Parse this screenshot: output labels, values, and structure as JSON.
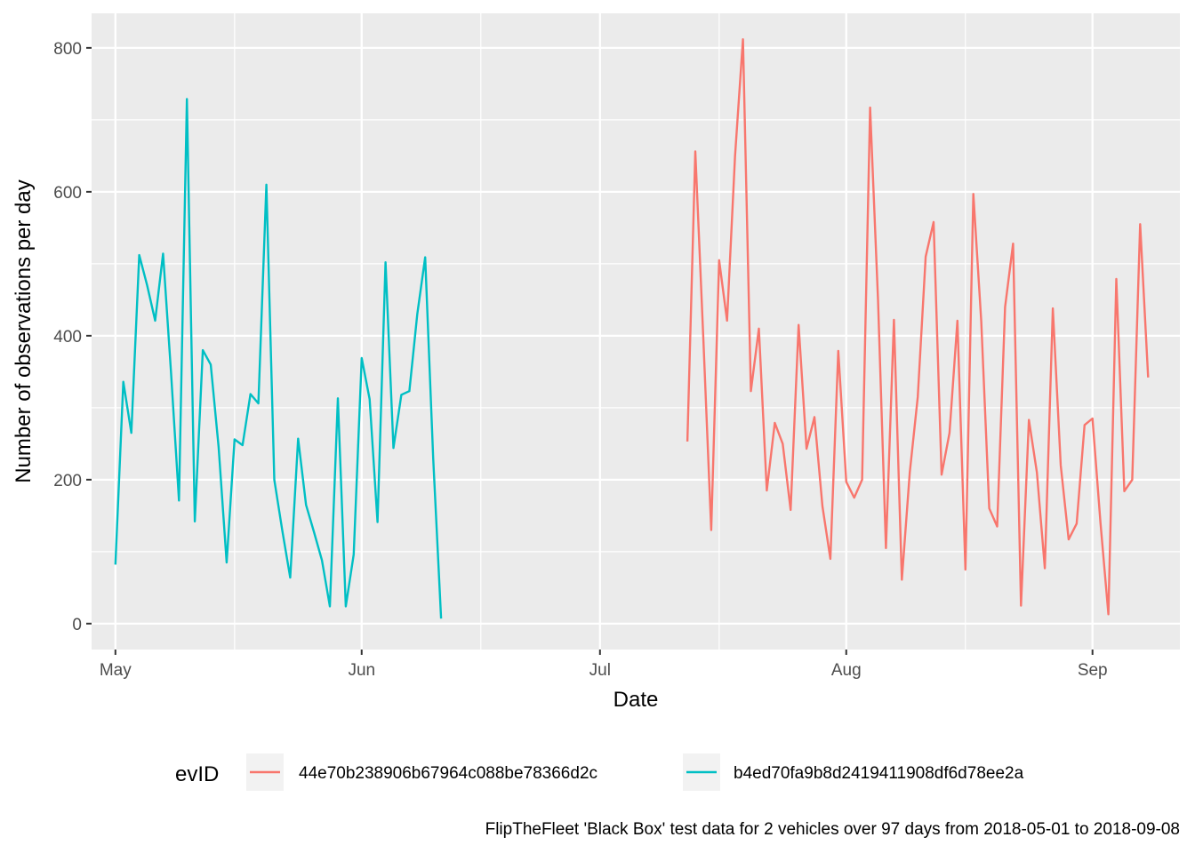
{
  "chart_data": {
    "type": "line",
    "title": "",
    "xlabel": "Date",
    "ylabel": "Number of observations per day",
    "caption": "FlipTheFleet 'Black Box' test data for 2 vehicles over 97 days from 2018-05-01 to 2018-09-08",
    "legend_title": "evID",
    "legend_position": "bottom",
    "grid": true,
    "xlim": [
      "2018-04-28",
      "2018-09-12"
    ],
    "ylim": [
      -36,
      848
    ],
    "x_ticks": [
      {
        "date": "2018-05-01",
        "label": "May"
      },
      {
        "date": "2018-06-01",
        "label": "Jun"
      },
      {
        "date": "2018-07-01",
        "label": "Jul"
      },
      {
        "date": "2018-08-01",
        "label": "Aug"
      },
      {
        "date": "2018-09-01",
        "label": "Sep"
      }
    ],
    "x_minor_ticks": [
      "2018-05-16",
      "2018-06-16",
      "2018-07-16",
      "2018-08-16"
    ],
    "y_ticks": [
      0,
      200,
      400,
      600,
      800
    ],
    "y_minor_ticks": [
      100,
      300,
      500,
      700
    ],
    "series": [
      {
        "name": "44e70b238906b67964c088be78366d2c",
        "color": "#F8766D",
        "x": [
          "2018-07-12",
          "2018-07-13",
          "2018-07-14",
          "2018-07-15",
          "2018-07-16",
          "2018-07-17",
          "2018-07-18",
          "2018-07-19",
          "2018-07-20",
          "2018-07-21",
          "2018-07-22",
          "2018-07-23",
          "2018-07-24",
          "2018-07-25",
          "2018-07-26",
          "2018-07-27",
          "2018-07-28",
          "2018-07-29",
          "2018-07-30",
          "2018-07-31",
          "2018-08-01",
          "2018-08-02",
          "2018-08-03",
          "2018-08-04",
          "2018-08-05",
          "2018-08-06",
          "2018-08-07",
          "2018-08-08",
          "2018-08-09",
          "2018-08-10",
          "2018-08-11",
          "2018-08-12",
          "2018-08-13",
          "2018-08-14",
          "2018-08-15",
          "2018-08-16",
          "2018-08-17",
          "2018-08-18",
          "2018-08-19",
          "2018-08-20",
          "2018-08-21",
          "2018-08-22",
          "2018-08-23",
          "2018-08-24",
          "2018-08-25",
          "2018-08-26",
          "2018-08-27",
          "2018-08-28",
          "2018-08-29",
          "2018-08-30",
          "2018-08-31",
          "2018-09-01",
          "2018-09-02",
          "2018-09-03",
          "2018-09-04",
          "2018-09-05",
          "2018-09-06",
          "2018-09-07",
          "2018-09-08"
        ],
        "values": [
          253,
          656,
          400,
          130,
          505,
          421,
          650,
          812,
          323,
          410,
          185,
          279,
          250,
          158,
          415,
          243,
          287,
          163,
          90,
          379,
          197,
          175,
          200,
          717,
          450,
          105,
          422,
          61,
          210,
          315,
          510,
          558,
          207,
          265,
          421,
          75,
          597,
          420,
          160,
          135,
          440,
          528,
          25,
          283,
          210,
          77,
          438,
          220,
          117,
          139,
          276,
          285,
          140,
          13,
          479,
          184,
          200,
          555,
          342
        ]
      },
      {
        "name": "b4ed70fa9b8d2419411908df6d78ee2a",
        "color": "#00BFC4",
        "x": [
          "2018-05-01",
          "2018-05-02",
          "2018-05-03",
          "2018-05-04",
          "2018-05-05",
          "2018-05-06",
          "2018-05-07",
          "2018-05-08",
          "2018-05-09",
          "2018-05-10",
          "2018-05-11",
          "2018-05-12",
          "2018-05-13",
          "2018-05-14",
          "2018-05-15",
          "2018-05-16",
          "2018-05-17",
          "2018-05-18",
          "2018-05-19",
          "2018-05-20",
          "2018-05-21",
          "2018-05-22",
          "2018-05-23",
          "2018-05-24",
          "2018-05-25",
          "2018-05-26",
          "2018-05-27",
          "2018-05-28",
          "2018-05-29",
          "2018-05-30",
          "2018-05-31",
          "2018-06-01",
          "2018-06-02",
          "2018-06-03",
          "2018-06-04",
          "2018-06-05",
          "2018-06-06",
          "2018-06-07",
          "2018-06-08",
          "2018-06-09",
          "2018-06-10",
          "2018-06-11"
        ],
        "values": [
          82,
          336,
          265,
          512,
          470,
          421,
          514,
          350,
          171,
          729,
          142,
          380,
          360,
          245,
          85,
          256,
          248,
          319,
          306,
          610,
          200,
          130,
          64,
          257,
          165,
          127,
          88,
          24,
          313,
          24,
          96,
          369,
          312,
          141,
          502,
          244,
          318,
          323,
          430,
          509,
          230,
          7
        ]
      }
    ]
  }
}
